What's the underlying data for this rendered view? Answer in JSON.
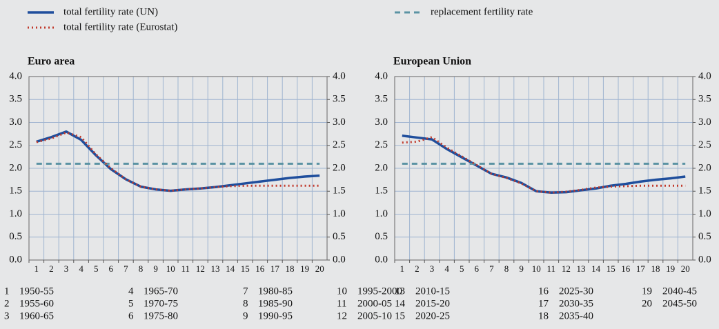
{
  "legend_position": "top",
  "chart_data": [
    {
      "type": "line",
      "title": "Euro area",
      "categories": [
        "1",
        "2",
        "3",
        "4",
        "5",
        "6",
        "7",
        "8",
        "9",
        "10",
        "11",
        "12",
        "13",
        "14",
        "15",
        "16",
        "17",
        "18",
        "19",
        "20"
      ],
      "ylim": [
        0,
        4
      ],
      "yticks": [
        {
          "value": 0,
          "label": "0.0"
        },
        {
          "value": 0.5,
          "label": "0.5"
        },
        {
          "value": 1,
          "label": "1.0"
        },
        {
          "value": 1.5,
          "label": "1.5"
        },
        {
          "value": 2,
          "label": "2.0"
        },
        {
          "value": 2.5,
          "label": "2.5"
        },
        {
          "value": 3,
          "label": "3.0"
        },
        {
          "value": 3.5,
          "label": "3.5"
        },
        {
          "value": 4,
          "label": "4.0"
        }
      ],
      "y2lim": [
        0,
        4
      ],
      "y2ticks": [
        {
          "value": 0,
          "label": "0.0"
        },
        {
          "value": 0.5,
          "label": "0.5"
        },
        {
          "value": 1,
          "label": "1.0"
        },
        {
          "value": 1.5,
          "label": "1.5"
        },
        {
          "value": 2,
          "label": "2.0"
        },
        {
          "value": 2.5,
          "label": "2.5"
        },
        {
          "value": 3,
          "label": "3.0"
        },
        {
          "value": 3.5,
          "label": "3.5"
        },
        {
          "value": 4,
          "label": "4.0"
        }
      ],
      "grid": true,
      "series": [
        {
          "name": "total fertility rate (UN)",
          "color": "#1f4e9c",
          "style": "solid",
          "values": [
            2.58,
            2.68,
            2.8,
            2.62,
            2.28,
            1.98,
            1.76,
            1.6,
            1.54,
            1.51,
            1.54,
            1.56,
            1.59,
            1.63,
            1.67,
            1.71,
            1.75,
            1.79,
            1.82,
            1.84
          ]
        },
        {
          "name": "total fertility rate (Eurostat)",
          "color": "#c0392b",
          "style": "dotted",
          "values": [
            2.57,
            2.65,
            2.78,
            2.68,
            2.3,
            2.0,
            1.76,
            1.6,
            1.54,
            1.51,
            1.54,
            1.56,
            1.59,
            1.61,
            1.62,
            1.62,
            1.62,
            1.62,
            1.62,
            1.62
          ]
        },
        {
          "name": "replacement fertility rate",
          "color": "#5b93a3",
          "style": "dashed",
          "values": [
            2.1,
            2.1,
            2.1,
            2.1,
            2.1,
            2.1,
            2.1,
            2.1,
            2.1,
            2.1,
            2.1,
            2.1,
            2.1,
            2.1,
            2.1,
            2.1,
            2.1,
            2.1,
            2.1,
            2.1
          ]
        }
      ]
    },
    {
      "type": "line",
      "title": "European Union",
      "categories": [
        "1",
        "2",
        "3",
        "4",
        "5",
        "6",
        "7",
        "8",
        "9",
        "10",
        "11",
        "12",
        "13",
        "14",
        "15",
        "16",
        "17",
        "18",
        "19",
        "20"
      ],
      "ylim": [
        0,
        4
      ],
      "yticks": [
        {
          "value": 0,
          "label": "0.0"
        },
        {
          "value": 0.5,
          "label": "0.5"
        },
        {
          "value": 1,
          "label": "1.0"
        },
        {
          "value": 1.5,
          "label": "1.5"
        },
        {
          "value": 2,
          "label": "2.0"
        },
        {
          "value": 2.5,
          "label": "2.5"
        },
        {
          "value": 3,
          "label": "3.0"
        },
        {
          "value": 3.5,
          "label": "3.5"
        },
        {
          "value": 4,
          "label": "4.0"
        }
      ],
      "y2lim": [
        0,
        4
      ],
      "y2ticks": [
        {
          "value": 0,
          "label": "0.0"
        },
        {
          "value": 0.5,
          "label": "0.5"
        },
        {
          "value": 1,
          "label": "1.0"
        },
        {
          "value": 1.5,
          "label": "1.5"
        },
        {
          "value": 2,
          "label": "2.0"
        },
        {
          "value": 2.5,
          "label": "2.5"
        },
        {
          "value": 3,
          "label": "3.0"
        },
        {
          "value": 3.5,
          "label": "3.5"
        },
        {
          "value": 4,
          "label": "4.0"
        }
      ],
      "grid": true,
      "series": [
        {
          "color": "#1f4e9c",
          "style": "solid",
          "values": [
            2.71,
            2.67,
            2.63,
            2.42,
            2.24,
            2.06,
            1.88,
            1.8,
            1.68,
            1.5,
            1.47,
            1.48,
            1.52,
            1.56,
            1.62,
            1.66,
            1.71,
            1.75,
            1.78,
            1.82
          ]
        },
        {
          "color": "#c0392b",
          "style": "dotted",
          "values": [
            2.56,
            2.58,
            2.68,
            2.45,
            2.26,
            2.07,
            1.88,
            1.79,
            1.67,
            1.5,
            1.47,
            1.49,
            1.53,
            1.58,
            1.6,
            1.61,
            1.62,
            1.62,
            1.62,
            1.62
          ]
        },
        {
          "color": "#5b93a3",
          "style": "dashed",
          "values": [
            2.1,
            2.1,
            2.1,
            2.1,
            2.1,
            2.1,
            2.1,
            2.1,
            2.1,
            2.1,
            2.1,
            2.1,
            2.1,
            2.1,
            2.1,
            2.1,
            2.1,
            2.1,
            2.1,
            2.1
          ]
        }
      ]
    }
  ],
  "key": [
    {
      "number": "1",
      "period": "1950-55"
    },
    {
      "number": "2",
      "period": "1955-60"
    },
    {
      "number": "3",
      "period": "1960-65"
    },
    {
      "number": "4",
      "period": "1965-70"
    },
    {
      "number": "5",
      "period": "1970-75"
    },
    {
      "number": "6",
      "period": "1975-80"
    },
    {
      "number": "7",
      "period": "1980-85"
    },
    {
      "number": "8",
      "period": "1985-90"
    },
    {
      "number": "9",
      "period": "1990-95"
    },
    {
      "number": "10",
      "period": "1995-2000"
    },
    {
      "number": "11",
      "period": "2000-05"
    },
    {
      "number": "12",
      "period": "2005-10"
    },
    {
      "number": "13",
      "period": "2010-15"
    },
    {
      "number": "14",
      "period": "2015-20"
    },
    {
      "number": "15",
      "period": "2020-25"
    },
    {
      "number": "16",
      "period": "2025-30"
    },
    {
      "number": "17",
      "period": "2030-35"
    },
    {
      "number": "18",
      "period": "2035-40"
    },
    {
      "number": "19",
      "period": "2040-45"
    },
    {
      "number": "20",
      "period": "2045-50"
    }
  ]
}
